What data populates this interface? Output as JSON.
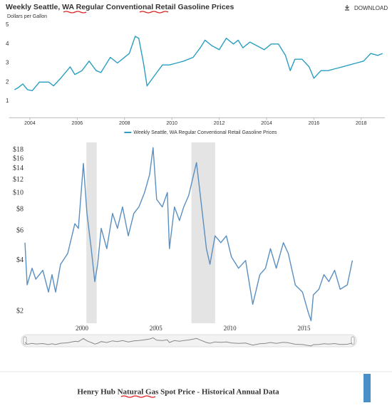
{
  "header": {
    "download": "DOWNLOAD"
  },
  "section_title": "Henry Hub Natural Gas Spot Price - Historical Annual Data",
  "chart_data": [
    {
      "type": "line",
      "title": "Weekly Seattle, WA Regular Conventional Retail Gasoline Prices",
      "y_label": "Dollars per Gallon",
      "legend": "bottom",
      "xlim": [
        2003.3,
        2019.0
      ],
      "xticks": [
        2004,
        2006,
        2008,
        2010,
        2012,
        2014,
        2016,
        2018
      ],
      "ylim": [
        0.2,
        5
      ],
      "yticks": [
        1,
        2,
        3,
        4,
        5
      ],
      "x": [
        2003.35,
        2003.5,
        2003.7,
        2003.9,
        2004.1,
        2004.4,
        2004.8,
        2005.0,
        2005.3,
        2005.7,
        2005.9,
        2006.2,
        2006.5,
        2006.8,
        2007.0,
        2007.4,
        2007.7,
        2007.9,
        2008.2,
        2008.45,
        2008.6,
        2008.8,
        2008.95,
        2009.3,
        2009.6,
        2009.9,
        2010.2,
        2010.5,
        2010.9,
        2011.2,
        2011.4,
        2011.7,
        2012.0,
        2012.3,
        2012.6,
        2012.8,
        2013.0,
        2013.3,
        2013.6,
        2013.9,
        2014.2,
        2014.5,
        2014.8,
        2015.0,
        2015.2,
        2015.5,
        2015.8,
        2016.0,
        2016.3,
        2016.6,
        2016.9,
        2017.2,
        2017.5,
        2017.8,
        2018.1,
        2018.4,
        2018.7,
        2018.9
      ],
      "series": [
        {
          "name": "Weekly Seattle, WA Regular Conventional Retail Gasoline Prices",
          "color": "#2a9fc0",
          "values": [
            1.6,
            1.7,
            1.9,
            1.6,
            1.55,
            2.0,
            2.0,
            1.8,
            2.2,
            2.8,
            2.4,
            2.6,
            3.1,
            2.6,
            2.5,
            3.3,
            3.0,
            3.2,
            3.5,
            4.4,
            4.3,
            3.0,
            1.8,
            2.4,
            2.9,
            2.9,
            3.0,
            3.1,
            3.3,
            3.8,
            4.2,
            3.9,
            3.7,
            4.3,
            4.0,
            4.2,
            3.8,
            4.1,
            3.9,
            3.7,
            4.0,
            4.0,
            3.4,
            2.6,
            3.2,
            3.2,
            2.8,
            2.2,
            2.6,
            2.6,
            2.7,
            2.8,
            2.9,
            3.0,
            3.1,
            3.5,
            3.4,
            3.5
          ]
        }
      ]
    },
    {
      "type": "line",
      "log_scale": true,
      "xlim": [
        1996.15,
        2018.3
      ],
      "xticks": [
        2000,
        2005,
        2010,
        2015
      ],
      "ylim": [
        1.7,
        20
      ],
      "yticks": [
        {
          "value": 2,
          "label": "$2"
        },
        {
          "value": 4,
          "label": "$4"
        },
        {
          "value": 6,
          "label": "$6"
        },
        {
          "value": 8,
          "label": "$8"
        },
        {
          "value": 10,
          "label": "$10"
        },
        {
          "value": 12,
          "label": "$12"
        },
        {
          "value": 14,
          "label": "$14"
        },
        {
          "value": 16,
          "label": "$16"
        },
        {
          "value": 18,
          "label": "$18"
        }
      ],
      "shaded_ranges": [
        [
          2000.3,
          2001.0
        ],
        [
          2007.4,
          2009.0
        ]
      ],
      "shade_color": "#e4e4e4",
      "x": [
        1996.15,
        1996.3,
        1996.63,
        1996.88,
        1997.36,
        1997.74,
        1997.98,
        1998.22,
        1998.56,
        1999.04,
        1999.52,
        1999.76,
        2000.1,
        2000.34,
        2000.63,
        2000.87,
        2001.06,
        2001.3,
        2001.68,
        2002.07,
        2002.4,
        2002.74,
        2003.13,
        2003.51,
        2003.85,
        2004.23,
        2004.57,
        2004.81,
        2005.05,
        2005.43,
        2005.77,
        2005.91,
        2006.25,
        2006.59,
        2006.88,
        2007.21,
        2007.55,
        2007.74,
        2008.03,
        2008.41,
        2008.65,
        2008.99,
        2009.38,
        2009.76,
        2010.1,
        2010.58,
        2011.06,
        2011.54,
        2012.02,
        2012.4,
        2012.74,
        2013.13,
        2013.61,
        2013.94,
        2014.42,
        2014.9,
        2015.29,
        2015.48,
        2015.63,
        2016.01,
        2016.35,
        2016.68,
        2017.07,
        2017.45,
        2017.93,
        2018.27
      ],
      "series": [
        {
          "color": "#5a8fc0",
          "values": [
            5.1,
            2.87,
            3.6,
            3.1,
            3.5,
            2.6,
            3.3,
            2.6,
            3.8,
            4.4,
            6.6,
            6.2,
            15,
            7.6,
            4.7,
            3.0,
            3.8,
            6.2,
            4.7,
            7.6,
            6.2,
            8.3,
            5.6,
            7.6,
            8.3,
            10.1,
            12.9,
            18.6,
            9.2,
            8.3,
            10.1,
            4.7,
            8.3,
            6.9,
            8.3,
            9.7,
            12.9,
            15.2,
            9.2,
            4.7,
            3.8,
            5.6,
            5.1,
            5.6,
            4.2,
            3.6,
            4.0,
            2.2,
            3.3,
            3.6,
            4.7,
            3.6,
            5.1,
            4.4,
            2.86,
            2.6,
            1.97,
            1.76,
            2.5,
            2.7,
            3.3,
            3.0,
            3.5,
            2.7,
            2.87,
            4.0
          ]
        }
      ]
    }
  ]
}
